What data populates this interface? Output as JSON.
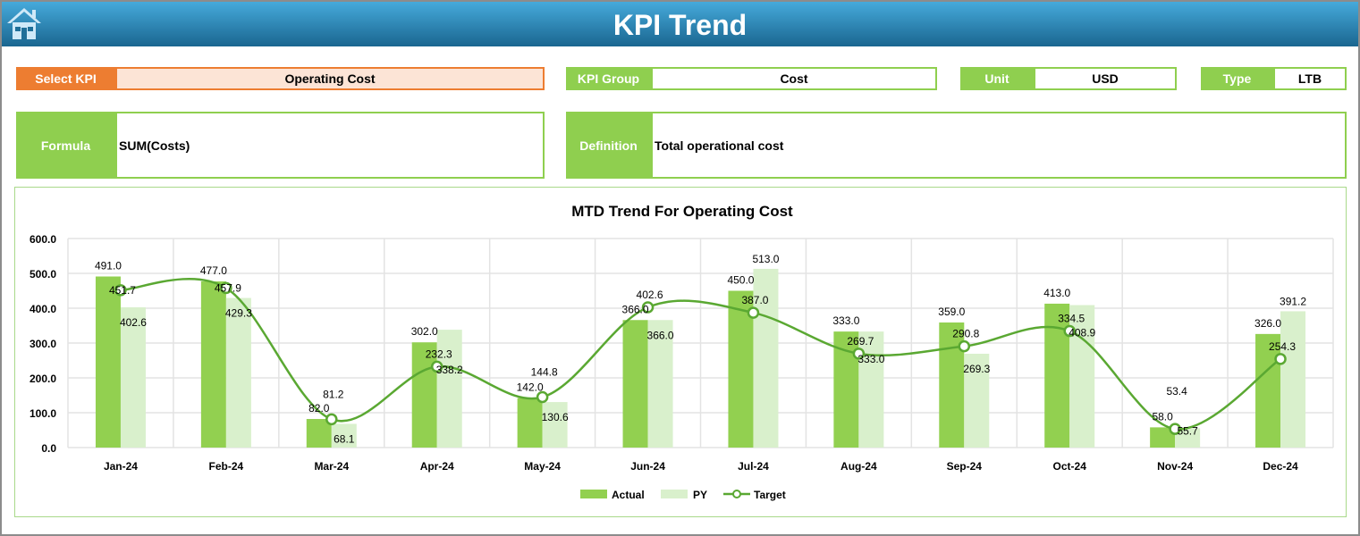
{
  "header": {
    "title": "KPI Trend",
    "home_icon": "home-icon"
  },
  "fields": {
    "select_kpi_label": "Select KPI",
    "select_kpi_value": "Operating Cost",
    "kpi_group_label": "KPI Group",
    "kpi_group_value": "Cost",
    "unit_label": "Unit",
    "unit_value": "USD",
    "type_label": "Type",
    "type_value": "LTB",
    "formula_label": "Formula",
    "formula_value": "SUM(Costs)",
    "definition_label": "Definition",
    "definition_value": "Total operational cost"
  },
  "colors": {
    "actual": "#92d050",
    "py": "#d9f0cc",
    "target": "#5aa832",
    "accent_orange": "#ed7d31"
  },
  "chart_data": {
    "type": "bar",
    "title": "MTD Trend For Operating Cost",
    "categories": [
      "Jan-24",
      "Feb-24",
      "Mar-24",
      "Apr-24",
      "May-24",
      "Jun-24",
      "Jul-24",
      "Aug-24",
      "Sep-24",
      "Oct-24",
      "Nov-24",
      "Dec-24"
    ],
    "series": [
      {
        "name": "Actual",
        "type": "bar",
        "values": [
          491.0,
          477.0,
          82.0,
          302.0,
          142.0,
          366.0,
          450.0,
          333.0,
          359.0,
          413.0,
          58.0,
          326.0
        ]
      },
      {
        "name": "PY",
        "type": "bar",
        "values": [
          402.6,
          429.3,
          68.1,
          338.2,
          130.6,
          366.0,
          513.0,
          333.0,
          269.3,
          408.9,
          55.7,
          391.2
        ]
      },
      {
        "name": "Target",
        "type": "line",
        "values": [
          451.7,
          457.9,
          81.2,
          232.3,
          144.8,
          402.6,
          387.0,
          269.7,
          290.8,
          334.5,
          53.4,
          254.3
        ]
      }
    ],
    "ylim": [
      0,
      600
    ],
    "yticks": [
      "0.0",
      "100.0",
      "200.0",
      "300.0",
      "400.0",
      "500.0",
      "600.0"
    ],
    "grid": true,
    "legend": "bottom"
  }
}
